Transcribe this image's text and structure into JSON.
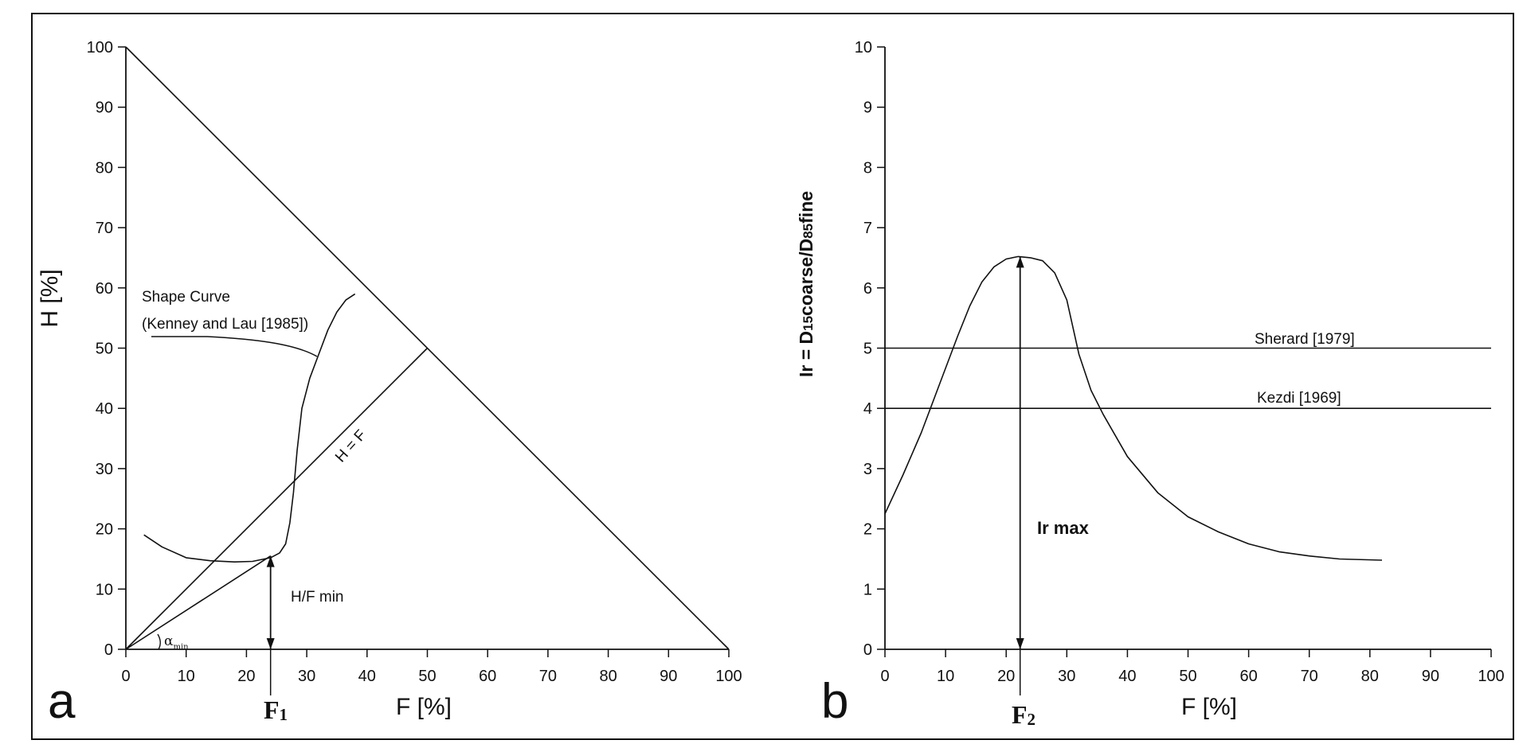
{
  "chart_data": [
    {
      "panel": "a",
      "type": "line",
      "xlabel": "F [%]",
      "ylabel": "H [%]",
      "xlim": [
        0,
        100
      ],
      "ylim": [
        0,
        100
      ],
      "xticks": [
        "0",
        "10",
        "20",
        "30",
        "40",
        "50",
        "60",
        "70",
        "80",
        "90",
        "100"
      ],
      "yticks": [
        "0",
        "10",
        "20",
        "30",
        "40",
        "50",
        "60",
        "70",
        "80",
        "90",
        "100"
      ],
      "grid": false,
      "series": [
        {
          "name": "",
          "x": [
            0,
            100
          ],
          "y": [
            100,
            0
          ]
        },
        {
          "name": "H = F",
          "x": [
            0,
            50
          ],
          "y": [
            0,
            50
          ]
        },
        {
          "name": "",
          "x": [
            0,
            24
          ],
          "y": [
            0,
            15.5
          ]
        },
        {
          "name": "",
          "x": [
            3,
            6,
            10,
            14,
            18,
            21,
            24,
            25.5,
            26.5,
            27.2,
            27.8,
            28.4,
            29.2,
            30.5,
            32,
            33.5,
            35,
            36.5,
            38
          ],
          "y": [
            19,
            17,
            15.2,
            14.7,
            14.5,
            14.6,
            15.2,
            16,
            17.5,
            21,
            26,
            33,
            40,
            45,
            49,
            53,
            56,
            58,
            59
          ]
        }
      ],
      "annotations": {
        "shape_curve_line1": "Shape Curve",
        "shape_curve_line2": "(Kenney and Lau [1985])",
        "diagonal_label": "H = F",
        "hf_min": "H/F min",
        "alpha": "α",
        "alpha_sub": "min",
        "f_marker": "F",
        "f_marker_sub": "1"
      },
      "markers": {
        "hf_min_arrow_x": 24,
        "hf_min_arrow_y": [
          0,
          15.5
        ],
        "F1_x": 24
      }
    },
    {
      "panel": "b",
      "type": "line",
      "xlabel": "F [%]",
      "ylabel": "Ir = D15coarse/D85fine",
      "xlim": [
        0,
        100
      ],
      "ylim": [
        0,
        10
      ],
      "xticks": [
        "0",
        "10",
        "20",
        "30",
        "40",
        "50",
        "60",
        "70",
        "80",
        "90",
        "100"
      ],
      "yticks": [
        "0",
        "1",
        "2",
        "3",
        "4",
        "5",
        "6",
        "7",
        "8",
        "9",
        "10"
      ],
      "grid": false,
      "series": [
        {
          "name": "",
          "x": [
            0,
            3,
            6,
            9,
            12,
            14,
            16,
            18,
            20,
            22,
            24,
            26,
            28,
            30,
            32,
            34,
            36,
            40,
            45,
            50,
            55,
            60,
            65,
            70,
            75,
            82
          ],
          "y": [
            2.25,
            2.9,
            3.6,
            4.4,
            5.2,
            5.7,
            6.1,
            6.35,
            6.48,
            6.52,
            6.5,
            6.45,
            6.25,
            5.8,
            4.9,
            4.3,
            3.9,
            3.2,
            2.6,
            2.2,
            1.95,
            1.75,
            1.62,
            1.55,
            1.5,
            1.48
          ]
        },
        {
          "name": "Sherard [1979]",
          "x": [
            0,
            100
          ],
          "y": [
            5,
            5
          ]
        },
        {
          "name": "Kezdi [1969]",
          "x": [
            0,
            100
          ],
          "y": [
            4,
            4
          ]
        }
      ],
      "annotations": {
        "sherard": "Sherard [1979]",
        "kezdi": "Kezdi [1969]",
        "ir_max": "Ir max",
        "f_marker": "F",
        "f_marker_sub": "2"
      },
      "markers": {
        "ir_max_arrow_x": 22.3,
        "ir_max_arrow_y": [
          0,
          6.52
        ],
        "F2_x": 22.3
      }
    }
  ],
  "panels": {
    "a": "a",
    "b": "b"
  },
  "ylabel_b_parts": {
    "main": "Ir = D",
    "s1": "15",
    "m2": "coarse/D",
    "s2": "85",
    "m3": "fine"
  }
}
